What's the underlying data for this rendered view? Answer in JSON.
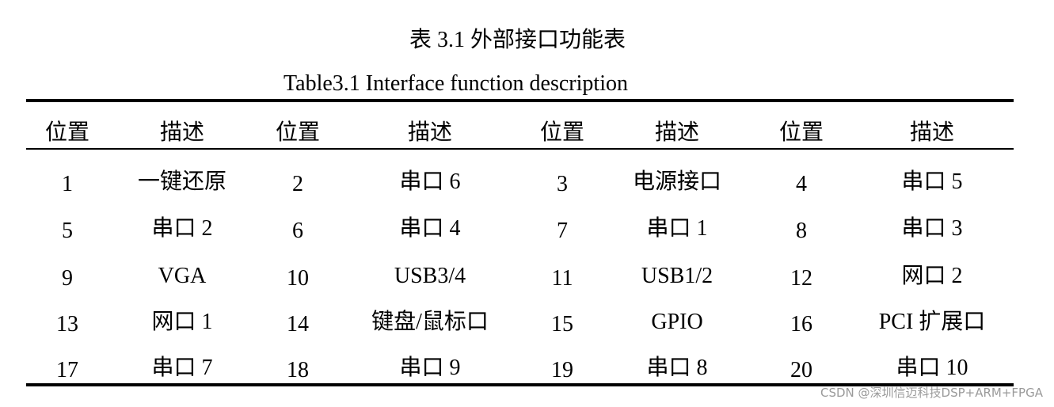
{
  "caption_cn": "表 3.1  外部接口功能表",
  "caption_en": "Table3.1 Interface function description",
  "headers": [
    "位置",
    "描述",
    "位置",
    "描述",
    "位置",
    "描述",
    "位置",
    "描述"
  ],
  "rows": [
    [
      "1",
      "一键还原",
      "2",
      "串口 6",
      "3",
      "电源接口",
      "4",
      "串口 5"
    ],
    [
      "5",
      "串口 2",
      "6",
      "串口 4",
      "7",
      "串口 1",
      "8",
      "串口 3"
    ],
    [
      "9",
      "VGA",
      "10",
      "USB3/4",
      "11",
      "USB1/2",
      "12",
      "网口 2"
    ],
    [
      "13",
      "网口 1",
      "14",
      "键盘/鼠标口",
      "15",
      "GPIO",
      "16",
      "PCI 扩展口"
    ],
    [
      "17",
      "串口 7",
      "18",
      "串口 9",
      "19",
      "串口 8",
      "20",
      "串口 10"
    ]
  ],
  "watermark": "CSDN @深圳信迈科技DSP+ARM+FPGA"
}
